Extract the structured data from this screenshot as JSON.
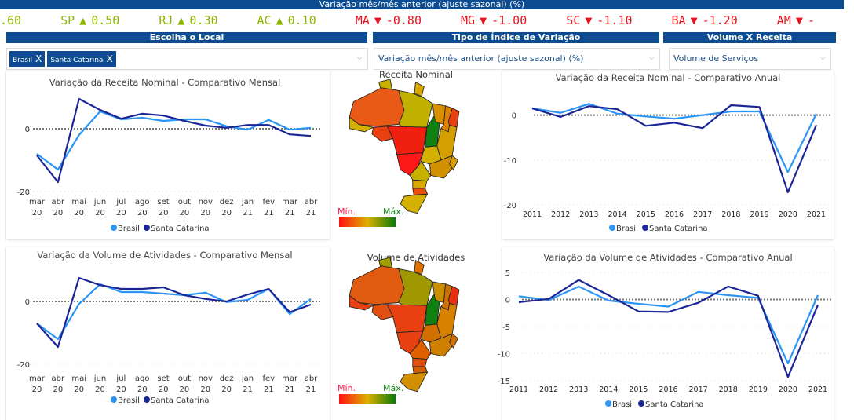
{
  "header": {
    "title": "Variação mês/mês anterior (ajuste sazonal) (%)"
  },
  "ticker": [
    {
      "label": ".60",
      "dir": "",
      "value": "",
      "color": "#8DB600"
    },
    {
      "label": "SP",
      "dir": "▲",
      "value": "0.50",
      "color": "#8DB600"
    },
    {
      "label": "RJ",
      "dir": "▲",
      "value": "0.30",
      "color": "#8DB600"
    },
    {
      "label": "AC",
      "dir": "▲",
      "value": "0.10",
      "color": "#8DB600"
    },
    {
      "label": "MA",
      "dir": "▼",
      "value": "-0.80",
      "color": "#E8141E"
    },
    {
      "label": "MG",
      "dir": "▼",
      "value": "-1.00",
      "color": "#E8141E"
    },
    {
      "label": "SC",
      "dir": "▼",
      "value": "-1.10",
      "color": "#E8141E"
    },
    {
      "label": "BA",
      "dir": "▼",
      "value": "-1.20",
      "color": "#E8141E"
    },
    {
      "label": "AM",
      "dir": "▼",
      "value": "-",
      "color": "#E8141E"
    }
  ],
  "filters": {
    "local": {
      "header": "Escolha o Local",
      "chips": [
        "Brasil",
        "Santa Catarina"
      ],
      "remove": "X"
    },
    "tipo": {
      "header": "Tipo de Índice de Variação",
      "value": "Variação mês/mês anterior (ajuste sazonal) (%)"
    },
    "volume": {
      "header": "Volume X Receita",
      "value": "Volume de Serviços"
    },
    "chevron": "⌵"
  },
  "legend_series": [
    "Brasil",
    "Santa Catarina"
  ],
  "colors": {
    "brasil": "#2B95F5",
    "sc": "#1A2696",
    "brand": "#0E4C92"
  },
  "maps": [
    {
      "title": "Receita Nominal",
      "min": "Mín.",
      "max": "Máx.",
      "state_colors": {
        "AM": "#E85A15",
        "AC": "#D4B000",
        "RR": "#C8B000",
        "PA": "#C0B000",
        "AP": "#D8A800",
        "RO": "#E84010",
        "MT": "#F02010",
        "TO": "#108010",
        "MA": "#D89000",
        "PI": "#E08000",
        "NE": "#E84010",
        "BA": "#D4A000",
        "GO": "#D4B000",
        "MG": "#D09000",
        "MS": "#FF1818",
        "SP": "#C8B000",
        "ES": "#D4A000",
        "PR": "#D8A800",
        "SC": "#E85010",
        "RS": "#D4B000"
      }
    },
    {
      "title": "Volume de Atividades",
      "min": "Mín.",
      "max": "Máx.",
      "state_colors": {
        "AM": "#E05A10",
        "AC": "#E84010",
        "RR": "#A0A000",
        "PA": "#A09800",
        "AP": "#E07000",
        "RO": "#E05010",
        "MT": "#E84010",
        "TO": "#108010",
        "MA": "#C89000",
        "PI": "#D07000",
        "NE": "#E83010",
        "BA": "#D88000",
        "GO": "#D07000",
        "MG": "#D08000",
        "MS": "#E84010",
        "SP": "#E06000",
        "ES": "#D07000",
        "PR": "#E05010",
        "SC": "#D06000",
        "RS": "#D09000"
      }
    }
  ],
  "chart_data": [
    {
      "type": "line",
      "title": "Variação da Receita Nominal - Comparativo Mensal",
      "categories": [
        [
          "mar",
          "20"
        ],
        [
          "abr",
          "20"
        ],
        [
          "mai",
          "20"
        ],
        [
          "jun",
          "20"
        ],
        [
          "jul",
          "20"
        ],
        [
          "ago",
          "20"
        ],
        [
          "set",
          "20"
        ],
        [
          "out",
          "20"
        ],
        [
          "nov",
          "20"
        ],
        [
          "dez",
          "20"
        ],
        [
          "jan",
          "21"
        ],
        [
          "fev",
          "21"
        ],
        [
          "mar",
          "21"
        ],
        [
          "abr",
          "21"
        ]
      ],
      "yticks": [
        0,
        -20
      ],
      "ylim": [
        -22,
        12
      ],
      "series": [
        {
          "name": "Brasil",
          "values": [
            -8,
            -13,
            -2,
            5.5,
            3,
            3.5,
            2.5,
            3,
            3,
            0.8,
            -0.3,
            2.8,
            -0.3,
            0.3
          ]
        },
        {
          "name": "Santa Catarina",
          "values": [
            -8.5,
            -17,
            9.5,
            6,
            3.2,
            4.8,
            4.2,
            2.5,
            1,
            0.3,
            1.2,
            1.2,
            -1.8,
            -2.3
          ]
        }
      ]
    },
    {
      "type": "line",
      "title": "Variação da Receita Nominal - Comparativo Anual",
      "categories": [
        "2011",
        "2012",
        "2013",
        "2014",
        "2015",
        "2016",
        "2017",
        "2018",
        "2019",
        "2020",
        "2021"
      ],
      "yticks": [
        0,
        -10,
        -20
      ],
      "ylim": [
        -20,
        5
      ],
      "series": [
        {
          "name": "Brasil",
          "values": [
            1.5,
            0.5,
            2.5,
            0.3,
            -0.3,
            -0.8,
            0,
            0.8,
            0.8,
            -12.7,
            0.3
          ]
        },
        {
          "name": "Santa Catarina",
          "values": [
            1.5,
            -0.4,
            2,
            1.3,
            -2.4,
            -1.7,
            -2.9,
            2.2,
            1.8,
            -17.2,
            -2.2
          ]
        }
      ]
    },
    {
      "type": "line",
      "title": "Variação da Volume de Atividades - Comparativo Mensal",
      "categories": [
        [
          "mar",
          "20"
        ],
        [
          "abr",
          "20"
        ],
        [
          "mai",
          "20"
        ],
        [
          "jun",
          "20"
        ],
        [
          "jul",
          "20"
        ],
        [
          "ago",
          "20"
        ],
        [
          "set",
          "20"
        ],
        [
          "out",
          "20"
        ],
        [
          "nov",
          "20"
        ],
        [
          "dez",
          "20"
        ],
        [
          "jan",
          "21"
        ],
        [
          "fev",
          "21"
        ],
        [
          "mar",
          "21"
        ],
        [
          "abr",
          "21"
        ]
      ],
      "yticks": [
        0,
        -20
      ],
      "ylim": [
        -20,
        12
      ],
      "series": [
        {
          "name": "Brasil",
          "values": [
            -7,
            -12,
            -0.8,
            5.5,
            3,
            3,
            2.5,
            2,
            2.8,
            -0.2,
            0.5,
            4,
            -4,
            0.8
          ]
        },
        {
          "name": "Santa Catarina",
          "values": [
            -7,
            -14.5,
            7.5,
            5.2,
            4,
            4,
            4.5,
            2,
            0.8,
            0,
            2.2,
            4,
            -3.4,
            -1
          ]
        }
      ]
    },
    {
      "type": "line",
      "title": "Variação da Volume de Atividades - Comparativo Anual",
      "categories": [
        "2011",
        "2012",
        "2013",
        "2014",
        "2015",
        "2016",
        "2017",
        "2018",
        "2019",
        "2020",
        "2021"
      ],
      "yticks": [
        5,
        0,
        -5,
        -10,
        -15
      ],
      "ylim": [
        -15,
        5
      ],
      "series": [
        {
          "name": "Brasil",
          "values": [
            0.6,
            -0.1,
            2.4,
            -0.2,
            -0.8,
            -1.3,
            1.4,
            0.8,
            0.3,
            -11.8,
            0.8
          ]
        },
        {
          "name": "Santa Catarina",
          "values": [
            -0.5,
            0.1,
            3.6,
            0.8,
            -2.2,
            -2.3,
            -0.6,
            2.4,
            0.7,
            -14.3,
            -1
          ]
        }
      ]
    }
  ]
}
